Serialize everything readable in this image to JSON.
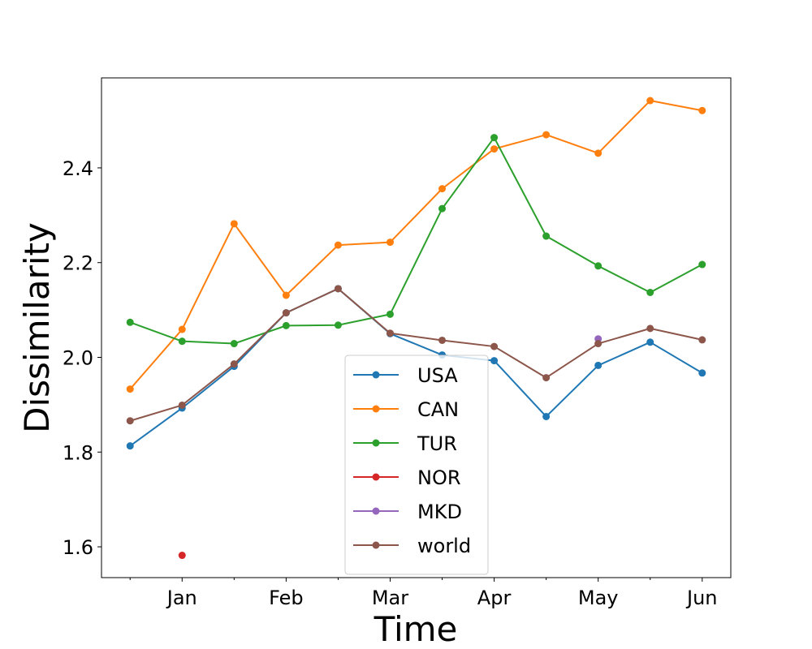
{
  "chart_data": {
    "type": "line",
    "xlabel": "Time",
    "ylabel": "Dissimilarity",
    "x_tick_labels": [
      "Jan",
      "Feb",
      "Mar",
      "Apr",
      "May",
      "Jun"
    ],
    "x_points": [
      "",
      "Jan",
      "",
      "Feb",
      "",
      "Mar",
      "",
      "Apr",
      "",
      "May",
      "",
      "Jun"
    ],
    "y_ticks": [
      1.6,
      1.8,
      2.0,
      2.2,
      2.4
    ],
    "y_tick_labels": [
      "1.6",
      "1.8",
      "2.0",
      "2.2",
      "2.4"
    ],
    "ylim": [
      1.535,
      2.59
    ],
    "xlim": [
      -0.55,
      11.55
    ],
    "grid": false,
    "legend_position": "lower center",
    "series": [
      {
        "name": "USA",
        "color": "#1f77b4",
        "values": [
          1.813,
          1.893,
          1.981,
          2.094,
          2.145,
          2.05,
          2.005,
          1.993,
          1.875,
          1.983,
          2.032,
          1.967
        ]
      },
      {
        "name": "CAN",
        "color": "#ff7f0e",
        "values": [
          1.933,
          2.059,
          2.282,
          2.131,
          2.237,
          2.243,
          2.356,
          2.44,
          2.47,
          2.431,
          2.542,
          2.521
        ]
      },
      {
        "name": "TUR",
        "color": "#2ca02c",
        "values": [
          2.074,
          2.034,
          2.029,
          2.067,
          2.068,
          2.091,
          2.314,
          2.464,
          2.256,
          2.193,
          2.137,
          2.196
        ]
      },
      {
        "name": "NOR",
        "color": "#d62728",
        "values": [
          null,
          1.582,
          null,
          null,
          null,
          null,
          null,
          null,
          null,
          null,
          null,
          null
        ]
      },
      {
        "name": "MKD",
        "color": "#9467bd",
        "values": [
          null,
          null,
          null,
          null,
          null,
          null,
          null,
          null,
          null,
          2.039,
          null,
          null
        ]
      },
      {
        "name": "world",
        "color": "#8c564b",
        "values": [
          1.866,
          1.899,
          1.986,
          2.094,
          2.145,
          2.051,
          2.036,
          2.023,
          1.957,
          2.029,
          2.061,
          2.037
        ]
      }
    ]
  }
}
